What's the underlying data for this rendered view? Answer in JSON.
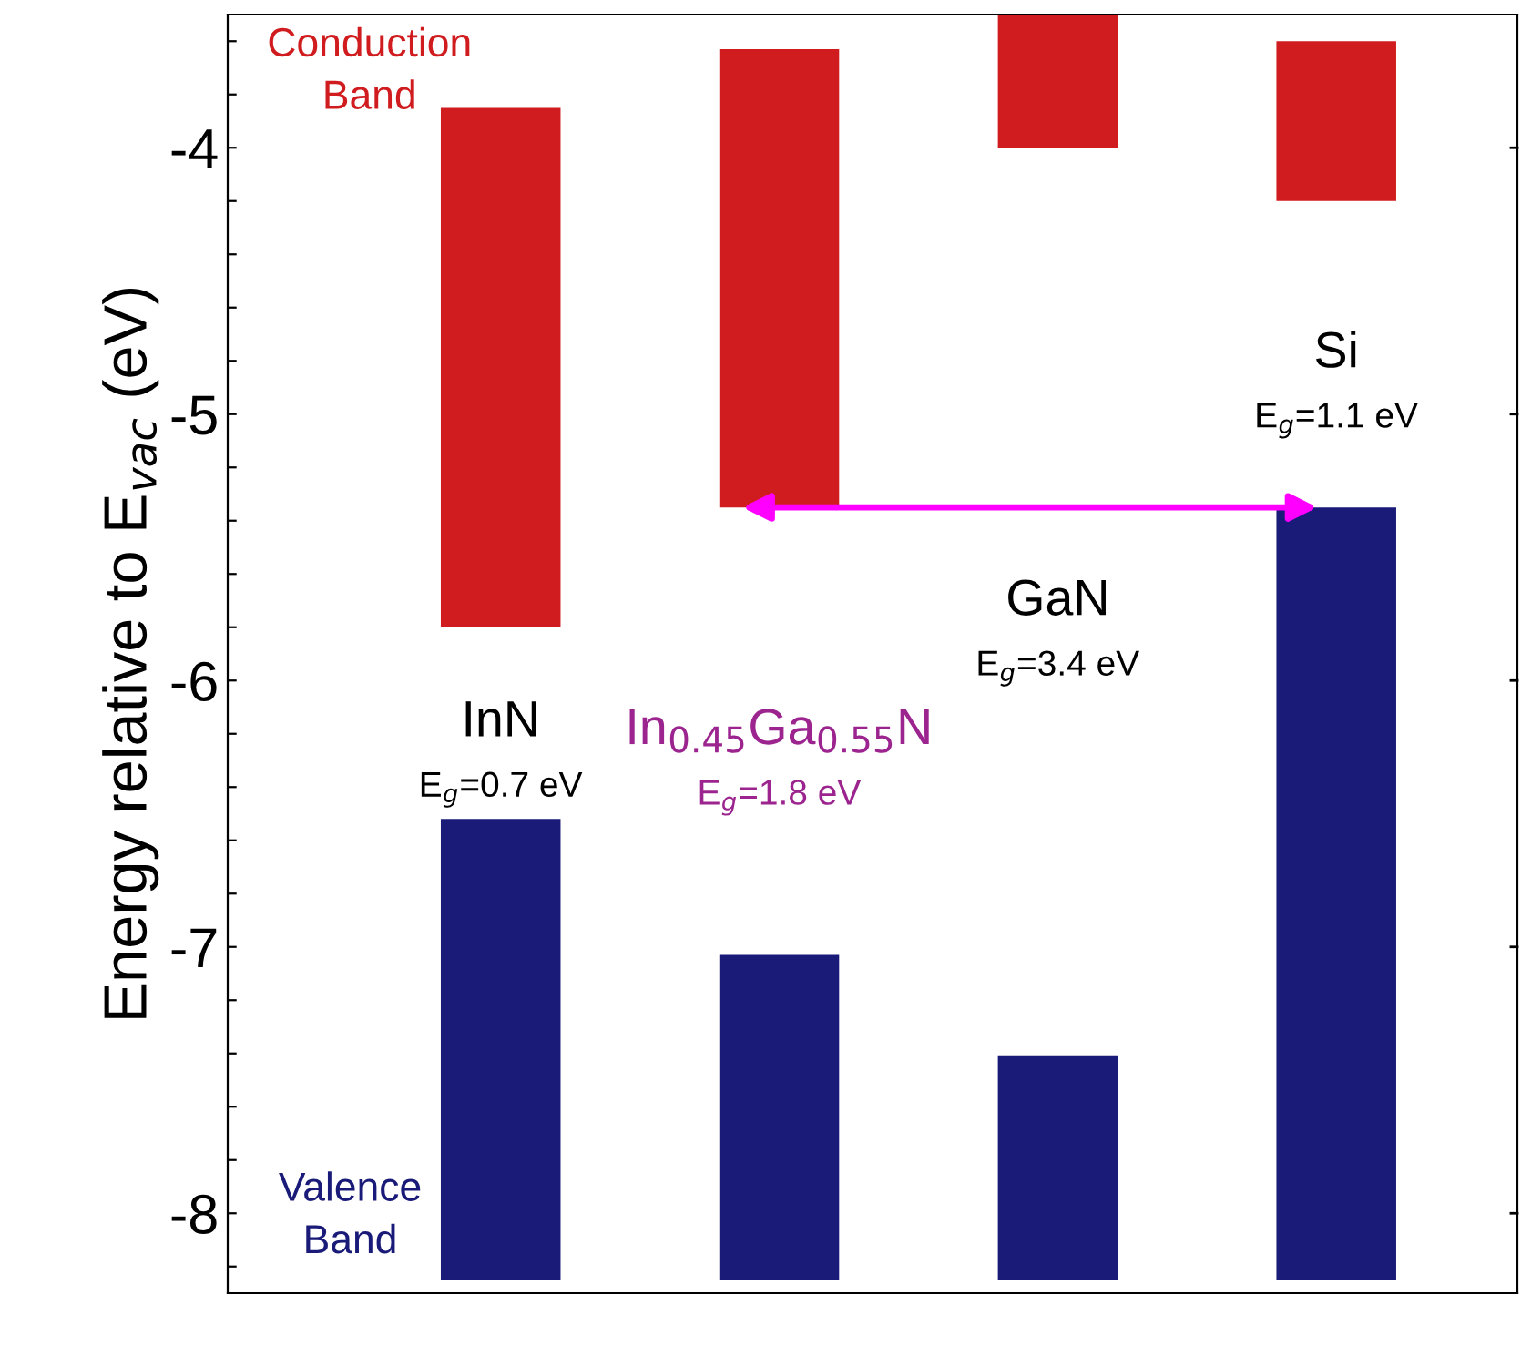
{
  "chart_data": {
    "type": "bar",
    "ylabel": "Energy relative to E$_{vac}$ (eV)",
    "categories": [
      "InN",
      "In$_{0.45}$Ga$_{0.55}$N",
      "GaN",
      "Si"
    ],
    "series": [
      {
        "name": "Conduction Band",
        "color": "#d01c1f",
        "base": [
          -5.8,
          -5.35,
          -4.0,
          -4.2
        ],
        "values": [
          1.95,
          1.72,
          0.5,
          0.6
        ]
      },
      {
        "name": "Valence Band",
        "color": "#1a1a78",
        "base": [
          -6.52,
          -7.03,
          -7.41,
          -5.35
        ],
        "values": [
          -1.73,
          -1.22,
          -0.84,
          -2.9
        ]
      }
    ],
    "annotations": [
      "E$_{g}$=0.7 eV",
      "E$_{g}$=1.8 eV",
      "E$_{g}$=3.4 eV",
      "E$_{g}$=1.1 eV"
    ],
    "ylim": [
      -8.3,
      -3.5
    ],
    "yticks": [
      {
        "value": -3.6,
        "label": null
      },
      {
        "value": -3.8,
        "label": null
      },
      {
        "value": -4,
        "label": "-4"
      },
      {
        "value": -4.2,
        "label": null
      },
      {
        "value": -4.4,
        "label": null
      },
      {
        "value": -4.6,
        "label": null
      },
      {
        "value": -4.8,
        "label": null
      },
      {
        "value": -5,
        "label": "-5"
      },
      {
        "value": -5.2,
        "label": null
      },
      {
        "value": -5.4,
        "label": null
      },
      {
        "value": -5.6,
        "label": null
      },
      {
        "value": -5.8,
        "label": null
      },
      {
        "value": -6,
        "label": "-6"
      },
      {
        "value": -6.2,
        "label": null
      },
      {
        "value": -6.4,
        "label": null
      },
      {
        "value": -6.6,
        "label": null
      },
      {
        "value": -6.8,
        "label": null
      },
      {
        "value": -7,
        "label": "-7"
      },
      {
        "value": -7.2,
        "label": null
      },
      {
        "value": -7.4,
        "label": null
      },
      {
        "value": -7.6,
        "label": null
      },
      {
        "value": -7.8,
        "label": null
      },
      {
        "value": -8,
        "label": "-8"
      },
      {
        "value": -8.2,
        "label": null
      }
    ],
    "tick_labels": "y",
    "grid": false,
    "legend": false
  }
}
